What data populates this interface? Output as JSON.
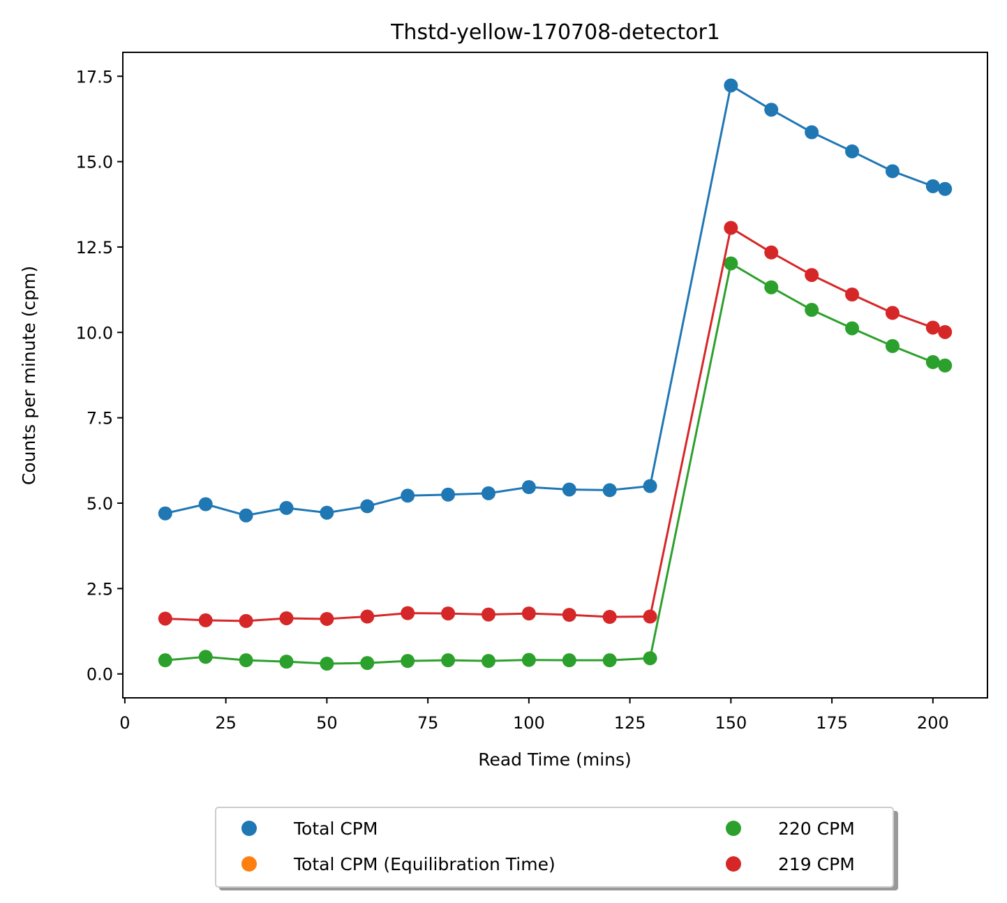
{
  "chart_data": {
    "type": "line",
    "title": "Thstd-yellow-170708-detector1",
    "xlabel": "Read Time (mins)",
    "ylabel": "Counts per minute (cpm)",
    "xlim": [
      -0.5,
      213.5
    ],
    "ylim": [
      -0.7,
      18.2
    ],
    "xticks": [
      0,
      25,
      50,
      75,
      100,
      125,
      150,
      175,
      200
    ],
    "yticks": [
      0.0,
      2.5,
      5.0,
      7.5,
      10.0,
      12.5,
      15.0,
      17.5
    ],
    "x": [
      10,
      20,
      30,
      40,
      50,
      60,
      70,
      80,
      90,
      100,
      110,
      120,
      130,
      150,
      160,
      170,
      180,
      190,
      200,
      203
    ],
    "grid": false,
    "legend_position": "below-center",
    "series": [
      {
        "name": "Total CPM",
        "color": "#1f77b4",
        "values": [
          4.7,
          4.97,
          4.64,
          4.86,
          4.72,
          4.91,
          5.22,
          5.25,
          5.29,
          5.47,
          5.4,
          5.38,
          5.5,
          17.23,
          16.52,
          15.86,
          15.3,
          14.72,
          14.28,
          14.2
        ]
      },
      {
        "name": "220 CPM",
        "color": "#2ca02c",
        "values": [
          0.4,
          0.5,
          0.4,
          0.36,
          0.3,
          0.32,
          0.38,
          0.4,
          0.38,
          0.41,
          0.4,
          0.4,
          0.46,
          12.02,
          11.32,
          10.66,
          10.12,
          9.6,
          9.13,
          9.03
        ]
      },
      {
        "name": "219 CPM",
        "color": "#d62728",
        "values": [
          1.62,
          1.57,
          1.55,
          1.63,
          1.61,
          1.68,
          1.78,
          1.77,
          1.74,
          1.77,
          1.73,
          1.67,
          1.68,
          13.06,
          12.34,
          11.68,
          11.11,
          10.57,
          10.14,
          10.01
        ]
      }
    ],
    "legend": [
      {
        "label": "Total CPM",
        "color": "#1f77b4"
      },
      {
        "label": "Total CPM (Equilibration Time)",
        "color": "#ff7f0e"
      },
      {
        "label": "220 CPM",
        "color": "#2ca02c"
      },
      {
        "label": "219 CPM",
        "color": "#d62728"
      }
    ]
  }
}
